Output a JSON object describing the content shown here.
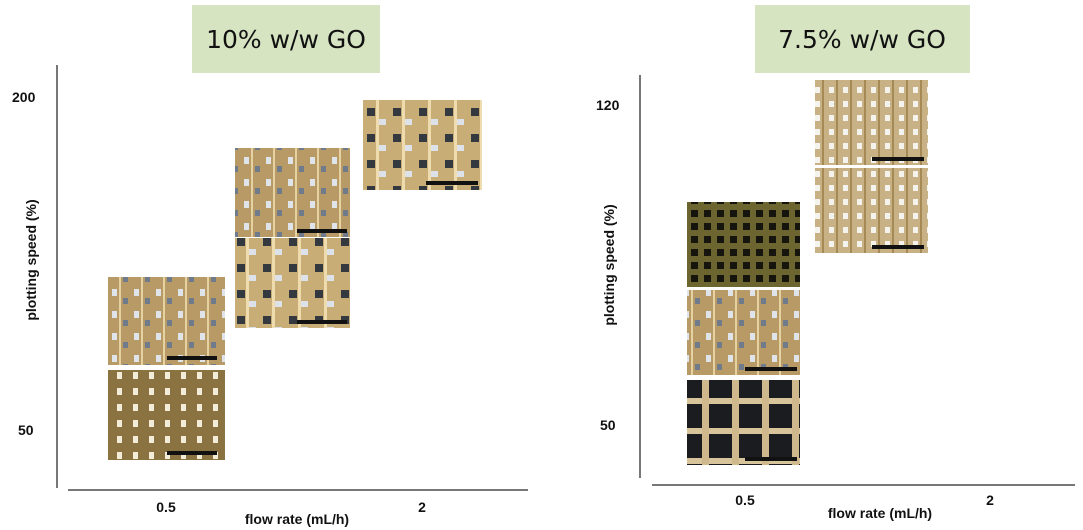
{
  "panels": [
    {
      "title": "10% w/w GO",
      "y_label": "plotting speed (%)",
      "y_ticks": [
        "200",
        "50"
      ],
      "x_label": "flow rate (mL/h)",
      "x_ticks": [
        "0.5",
        "2"
      ]
    },
    {
      "title": "7.5% w/w GO",
      "y_label": "plotting speed (%)",
      "y_ticks": [
        "120",
        "50"
      ],
      "x_label": "flow rate (mL/h)",
      "x_ticks": [
        "0.5",
        "2"
      ]
    }
  ]
}
